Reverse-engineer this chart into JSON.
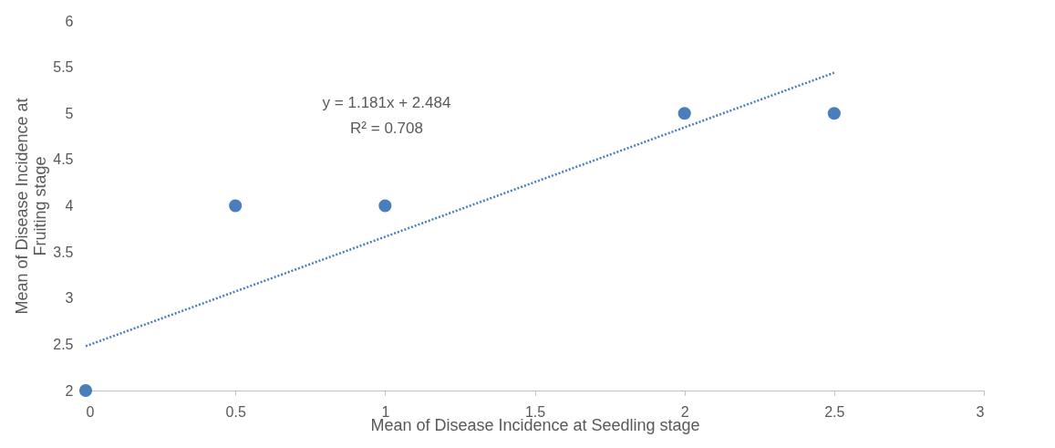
{
  "chart_data": {
    "type": "scatter",
    "xlabel": "Mean of Disease Incidence at Seedling stage",
    "ylabel": "Mean of Disease Incidence at\nFruiting stage",
    "annotations": [
      "y = 1.181x + 2.484",
      "R² = 0.708"
    ],
    "series": [
      {
        "type": "scatter",
        "color": "#4a7ebb",
        "marker": "circle",
        "x": [
          0,
          0.5,
          1,
          2,
          2.5
        ],
        "values": [
          2,
          4,
          4,
          5,
          5
        ]
      },
      {
        "type": "line",
        "color": "#4a7ebb",
        "marker": "none",
        "line_style": "dotted",
        "x": [
          0,
          2.5
        ],
        "values": [
          2.48,
          5.44
        ]
      }
    ],
    "xlim": [
      0,
      3
    ],
    "xticks": [
      0,
      0.5,
      1,
      1.5,
      2,
      2.5,
      3
    ],
    "ylim": [
      2,
      6
    ],
    "yticks": [
      2,
      2.5,
      3,
      3.5,
      4,
      4.5,
      5,
      5.5,
      6
    ],
    "grid": false
  }
}
